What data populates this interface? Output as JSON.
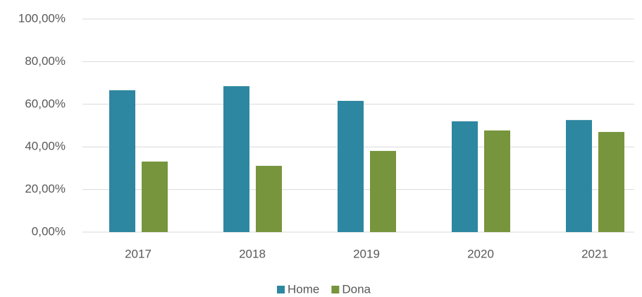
{
  "chart_data": {
    "type": "bar",
    "categories": [
      "2017",
      "2018",
      "2019",
      "2020",
      "2021"
    ],
    "series": [
      {
        "name": "Home",
        "color": "#2e87a0",
        "values": [
          66.6,
          68.5,
          61.6,
          52.0,
          52.6
        ]
      },
      {
        "name": "Dona",
        "color": "#77953d",
        "values": [
          33.1,
          31.1,
          38.1,
          47.7,
          47.0
        ]
      }
    ],
    "ylim": [
      0,
      100
    ],
    "yticks": [
      {
        "value": 0,
        "label": "0,00%"
      },
      {
        "value": 20,
        "label": "20,00%"
      },
      {
        "value": 40,
        "label": "40,00%"
      },
      {
        "value": 60,
        "label": "60,00%"
      },
      {
        "value": 80,
        "label": "80,00%"
      },
      {
        "value": 100,
        "label": "100,00%"
      }
    ],
    "grid": true
  }
}
